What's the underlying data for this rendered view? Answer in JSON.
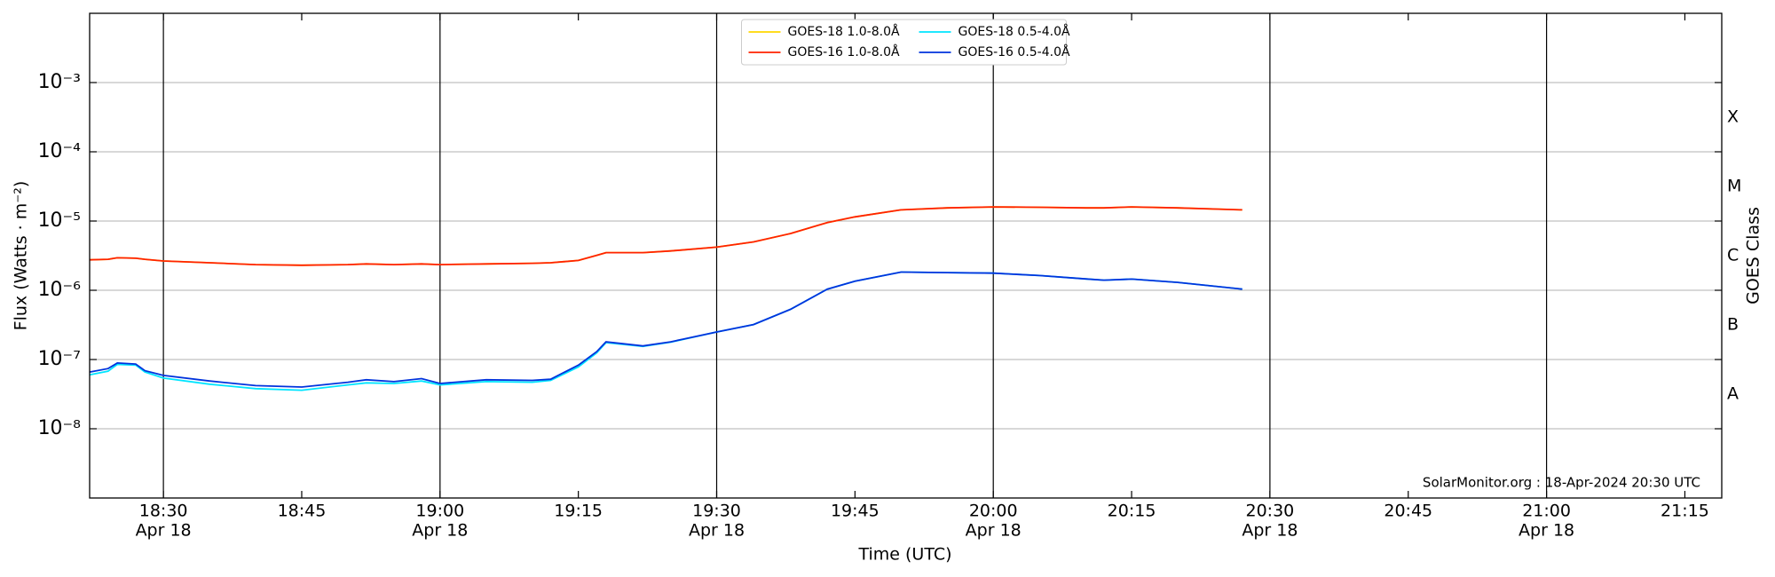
{
  "chart_data": {
    "type": "line",
    "xlabel": "Time (UTC)",
    "ylabel": "Flux (Watts · m⁻²)",
    "y2label": "GOES Class",
    "annotation": "SolarMonitor.org : 18-Apr-2024 20:30 UTC",
    "x": [
      "18:22",
      "18:24",
      "18:25",
      "18:27",
      "18:28",
      "18:30",
      "18:35",
      "18:40",
      "18:45",
      "18:50",
      "18:52",
      "18:55",
      "18:58",
      "19:00",
      "19:05",
      "19:10",
      "19:12",
      "19:15",
      "19:17",
      "19:18",
      "19:22",
      "19:25",
      "19:30",
      "19:34",
      "19:38",
      "19:42",
      "19:45",
      "19:50",
      "19:55",
      "20:00",
      "20:05",
      "20:10",
      "20:12",
      "20:15",
      "20:20",
      "20:27"
    ],
    "series": [
      {
        "name": "GOES-18 1.0-8.0Å",
        "color": "#ffd700",
        "values": [
          2.75e-06,
          2.8e-06,
          2.95e-06,
          2.9e-06,
          2.8e-06,
          2.65e-06,
          2.5e-06,
          2.35e-06,
          2.3e-06,
          2.35e-06,
          2.4e-06,
          2.35e-06,
          2.4e-06,
          2.35e-06,
          2.4e-06,
          2.45e-06,
          2.5e-06,
          2.7e-06,
          3.2e-06,
          3.5e-06,
          3.5e-06,
          3.7e-06,
          4.2e-06,
          5e-06,
          6.6e-06,
          9.5e-06,
          1.15e-05,
          1.45e-05,
          1.55e-05,
          1.6e-05,
          1.58e-05,
          1.55e-05,
          1.55e-05,
          1.6e-05,
          1.55e-05,
          1.45e-05
        ]
      },
      {
        "name": "GOES-16 1.0-8.0Å",
        "color": "#ff2200",
        "values": [
          2.75e-06,
          2.8e-06,
          2.95e-06,
          2.9e-06,
          2.8e-06,
          2.65e-06,
          2.5e-06,
          2.35e-06,
          2.3e-06,
          2.35e-06,
          2.4e-06,
          2.35e-06,
          2.4e-06,
          2.35e-06,
          2.4e-06,
          2.45e-06,
          2.5e-06,
          2.7e-06,
          3.2e-06,
          3.5e-06,
          3.5e-06,
          3.7e-06,
          4.2e-06,
          5e-06,
          6.6e-06,
          9.5e-06,
          1.15e-05,
          1.45e-05,
          1.55e-05,
          1.6e-05,
          1.58e-05,
          1.55e-05,
          1.55e-05,
          1.6e-05,
          1.55e-05,
          1.45e-05
        ]
      },
      {
        "name": "GOES-18 0.5-4.0Å",
        "color": "#00e5ff",
        "values": [
          6e-08,
          6.8e-08,
          8.5e-08,
          8.3e-08,
          6.6e-08,
          5.4e-08,
          4.4e-08,
          3.8e-08,
          3.6e-08,
          4.3e-08,
          4.6e-08,
          4.5e-08,
          4.9e-08,
          4.3e-08,
          4.8e-08,
          4.7e-08,
          5e-08,
          7.8e-08,
          1.25e-07,
          1.75e-07,
          1.55e-07,
          1.78e-07,
          2.5e-07,
          3.2e-07,
          5.3e-07,
          1.04e-06,
          1.35e-06,
          1.83e-06,
          1.8e-06,
          1.77e-06,
          1.63e-06,
          1.46e-06,
          1.4e-06,
          1.45e-06,
          1.3e-06,
          1.04e-06
        ]
      },
      {
        "name": "GOES-16 0.5-4.0Å",
        "color": "#0033dd",
        "values": [
          6.6e-08,
          7.4e-08,
          8.9e-08,
          8.6e-08,
          6.9e-08,
          5.9e-08,
          4.9e-08,
          4.2e-08,
          4e-08,
          4.7e-08,
          5.1e-08,
          4.8e-08,
          5.3e-08,
          4.5e-08,
          5.1e-08,
          5e-08,
          5.2e-08,
          8.3e-08,
          1.3e-07,
          1.8e-07,
          1.57e-07,
          1.8e-07,
          2.5e-07,
          3.2e-07,
          5.3e-07,
          1.04e-06,
          1.35e-06,
          1.83e-06,
          1.8e-06,
          1.77e-06,
          1.63e-06,
          1.46e-06,
          1.4e-06,
          1.45e-06,
          1.3e-06,
          1.04e-06
        ]
      }
    ],
    "xlim": [
      "18:22",
      "21:19"
    ],
    "xticks": [
      "18:30",
      "18:45",
      "19:00",
      "19:15",
      "19:30",
      "19:45",
      "20:00",
      "20:15",
      "20:30",
      "20:45",
      "21:00",
      "21:15"
    ],
    "xtick_sublabels": [
      "Apr 18",
      null,
      "Apr 18",
      null,
      "Apr 18",
      null,
      "Apr 18",
      null,
      "Apr 18",
      null,
      "Apr 18",
      null
    ],
    "ylim": [
      1e-09,
      0.01
    ],
    "log_y": true,
    "grid": true,
    "yticks": [
      {
        "value": 1e-08,
        "label": "10⁻⁸"
      },
      {
        "value": 1e-07,
        "label": "10⁻⁷"
      },
      {
        "value": 1e-06,
        "label": "10⁻⁶"
      },
      {
        "value": 1e-05,
        "label": "10⁻⁵"
      },
      {
        "value": 0.0001,
        "label": "10⁻⁴"
      },
      {
        "value": 0.001,
        "label": "10⁻³"
      }
    ],
    "y2lim": [
      1e-09,
      0.01
    ],
    "y2ticks": [
      {
        "value": 3.16e-08,
        "label": "A"
      },
      {
        "value": 3.16e-07,
        "label": "B"
      },
      {
        "value": 3.16e-06,
        "label": "C"
      },
      {
        "value": 3.16e-05,
        "label": "M"
      },
      {
        "value": 0.000316,
        "label": "X"
      }
    ],
    "legend": "upper center"
  }
}
